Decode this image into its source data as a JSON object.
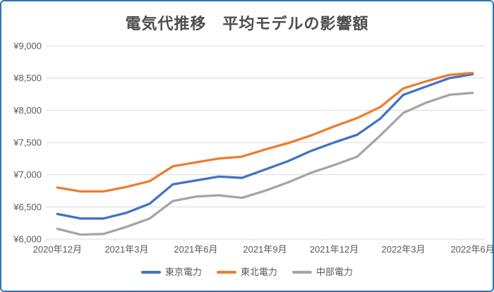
{
  "frame": {
    "background_color": "#FFFFFF",
    "border_color": "#2E75B6"
  },
  "chart_data": {
    "type": "line",
    "title": "電気代推移　平均モデルの影響額",
    "title_color": "#4D4D4D",
    "text_color": "#595959",
    "grid": true,
    "gridline_color": "#D9D9D9",
    "categories": [
      "2020年12月",
      "2021年1月",
      "2021年2月",
      "2021年3月",
      "2021年4月",
      "2021年5月",
      "2021年6月",
      "2021年7月",
      "2021年8月",
      "2021年9月",
      "2021年10月",
      "2021年11月",
      "2021年12月",
      "2022年1月",
      "2022年2月",
      "2022年3月",
      "2022年4月",
      "2022年5月",
      "2022年6月"
    ],
    "x_axis": {
      "visible_tick_labels": [
        "2020年12月",
        "2021年3月",
        "2021年6月",
        "2021年9月",
        "2021年12月",
        "2022年3月",
        "2022年6月"
      ],
      "label_every": 3
    },
    "y_axis": {
      "min": 6000,
      "max": 9000,
      "step": 500,
      "tick_labels": [
        "¥6,000",
        "¥6,500",
        "¥7,000",
        "¥7,500",
        "¥8,000",
        "¥8,500",
        "¥9,000"
      ]
    },
    "series": [
      {
        "name": "東京電力",
        "color": "#4472C4",
        "values": [
          6390,
          6320,
          6320,
          6410,
          6550,
          6850,
          6910,
          6970,
          6950,
          7080,
          7210,
          7370,
          7500,
          7620,
          7870,
          8240,
          8370,
          8500,
          8560
        ]
      },
      {
        "name": "東北電力",
        "color": "#ED7D31",
        "values": [
          6800,
          6740,
          6740,
          6810,
          6900,
          7130,
          7190,
          7250,
          7280,
          7390,
          7490,
          7610,
          7750,
          7880,
          8050,
          8340,
          8450,
          8550,
          8580
        ]
      },
      {
        "name": "中部電力",
        "color": "#A5A5A5",
        "values": [
          6160,
          6070,
          6080,
          6190,
          6320,
          6590,
          6660,
          6680,
          6640,
          6750,
          6880,
          7030,
          7150,
          7280,
          7610,
          7960,
          8120,
          8240,
          8270
        ]
      }
    ],
    "legend": {
      "position": "bottom",
      "entries": [
        "東京電力",
        "東北電力",
        "中部電力"
      ]
    }
  }
}
